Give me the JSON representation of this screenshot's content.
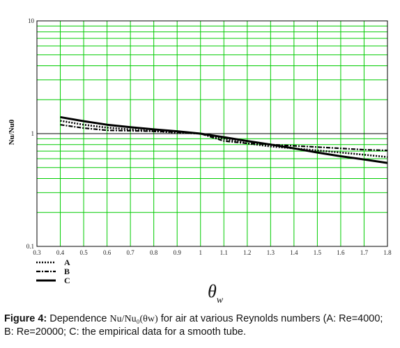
{
  "chart_data": {
    "type": "line",
    "title": "",
    "xlabel": "θ",
    "xlabel_subscript": "w",
    "ylabel": "Nu/Nu0",
    "xlim": [
      0.3,
      1.8
    ],
    "ylim": [
      0.1,
      10
    ],
    "y_scale": "log",
    "grid": true,
    "grid_color": "#00cc00",
    "x_ticks": [
      "0.3",
      "0.4",
      "0.5",
      "0.6",
      "0.7",
      "0.8",
      "0.9",
      "1",
      "1.1",
      "1.2",
      "1.3",
      "1.4",
      "1.5",
      "1.6",
      "1.7",
      "1.8"
    ],
    "y_ticks": [
      "0.1",
      "1",
      "10"
    ],
    "legend_position": "below-left",
    "series": [
      {
        "name": "A",
        "style": "dotted",
        "x": [
          0.4,
          0.5,
          0.6,
          0.7,
          0.8,
          0.9,
          1.0,
          1.1,
          1.2,
          1.3,
          1.4,
          1.5,
          1.6,
          1.7,
          1.8
        ],
        "y": [
          1.3,
          1.2,
          1.13,
          1.09,
          1.05,
          1.02,
          1.0,
          0.9,
          0.82,
          0.77,
          0.74,
          0.71,
          0.68,
          0.65,
          0.62
        ]
      },
      {
        "name": "B",
        "style": "dash-dot",
        "x": [
          0.4,
          0.5,
          0.6,
          0.7,
          0.8,
          0.9,
          1.0,
          1.1,
          1.2,
          1.3,
          1.4,
          1.5,
          1.6,
          1.7,
          1.8
        ],
        "y": [
          1.2,
          1.12,
          1.07,
          1.06,
          1.05,
          1.03,
          1.0,
          0.86,
          0.82,
          0.8,
          0.78,
          0.76,
          0.74,
          0.72,
          0.71
        ]
      },
      {
        "name": "C",
        "style": "solid",
        "x": [
          0.4,
          0.5,
          0.6,
          0.7,
          0.8,
          0.9,
          1.0,
          1.1,
          1.2,
          1.3,
          1.4,
          1.5,
          1.6,
          1.7,
          1.8
        ],
        "y": [
          1.4,
          1.29,
          1.2,
          1.14,
          1.09,
          1.05,
          1.0,
          0.93,
          0.86,
          0.8,
          0.74,
          0.68,
          0.63,
          0.59,
          0.55
        ]
      }
    ]
  },
  "caption": {
    "label": "Figure 4:",
    "text_before": " Dependence ",
    "math": "Nu/Nu₀(θw)",
    "text_after": " for air at various Reynolds numbers (A: Re=4000; B: Re=20000; C: the empirical data for a smooth tube."
  }
}
